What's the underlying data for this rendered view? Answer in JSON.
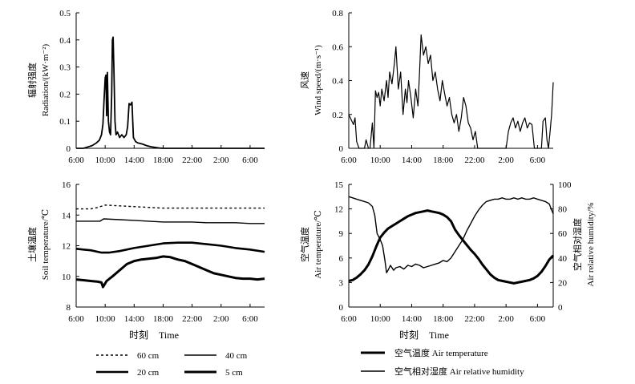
{
  "colors": {
    "ink": "#000000",
    "background": "#ffffff"
  },
  "chart_data": [
    {
      "id": "radiation",
      "type": "line",
      "ylabel_cn": "辐射强度",
      "ylabel_en": "Radiation/(kW·m⁻²)",
      "xlabel_cn": "",
      "xlabel_en": "",
      "ylim": [
        0,
        0.5
      ],
      "yticks": [
        0,
        0.1,
        0.2,
        0.3,
        0.4,
        0.5
      ],
      "ytick_labels": [
        "0",
        "0.1",
        "0.2",
        "0.3",
        "0.4",
        "0.5"
      ],
      "xlim": [
        6,
        32
      ],
      "xticks": [
        6,
        10,
        14,
        18,
        22,
        26,
        30
      ],
      "xtick_labels": [
        "6:00",
        "10:00",
        "14:00",
        "18:00",
        "22:00",
        "2:00",
        "6:00"
      ],
      "series": [
        {
          "name": "Radiation",
          "stroke": 1.8,
          "x": [
            6,
            7,
            7.6,
            8.2,
            8.8,
            9.2,
            9.5,
            9.7,
            9.85,
            10.0,
            10.1,
            10.2,
            10.3,
            10.45,
            10.6,
            10.75,
            10.9,
            11.0,
            11.1,
            11.2,
            11.35,
            11.5,
            11.7,
            12.0,
            12.3,
            12.6,
            12.9,
            13.1,
            13.3,
            13.5,
            13.7,
            13.9,
            14.0,
            14.2,
            14.5,
            14.8,
            15.2,
            15.7,
            16.3,
            17.0,
            17.5,
            18.0,
            18.5,
            20,
            24,
            28,
            32
          ],
          "y": [
            0,
            0,
            0.005,
            0.01,
            0.02,
            0.03,
            0.05,
            0.09,
            0.18,
            0.26,
            0.27,
            0.12,
            0.28,
            0.1,
            0.06,
            0.05,
            0.2,
            0.4,
            0.41,
            0.3,
            0.1,
            0.05,
            0.06,
            0.04,
            0.05,
            0.04,
            0.05,
            0.08,
            0.165,
            0.16,
            0.17,
            0.04,
            0.035,
            0.025,
            0.02,
            0.018,
            0.015,
            0.01,
            0.006,
            0.003,
            0.001,
            0,
            0,
            0,
            0,
            0,
            0
          ]
        }
      ]
    },
    {
      "id": "wind",
      "type": "line",
      "ylabel_cn": "风速",
      "ylabel_en": "Wind speed/(m·s⁻¹)",
      "xlabel_cn": "",
      "xlabel_en": "",
      "ylim": [
        0,
        0.8
      ],
      "yticks": [
        0,
        0.2,
        0.4,
        0.6,
        0.8
      ],
      "ytick_labels": [
        "0",
        "0.2",
        "0.4",
        "0.6",
        "0.8"
      ],
      "xlim": [
        6,
        32
      ],
      "xticks": [
        6,
        10,
        14,
        18,
        22,
        26,
        30
      ],
      "xtick_labels": [
        "6:00",
        "10:00",
        "14:00",
        "18:00",
        "22:00",
        "2:00",
        "6:00"
      ],
      "series": [
        {
          "name": "Wind speed",
          "stroke": 1.2,
          "x": [
            6,
            6.3,
            6.6,
            6.8,
            7.0,
            7.3,
            7.6,
            8.0,
            8.2,
            8.5,
            8.7,
            9.0,
            9.2,
            9.4,
            9.6,
            9.8,
            10.0,
            10.2,
            10.5,
            10.8,
            11.0,
            11.2,
            11.5,
            11.8,
            12.0,
            12.3,
            12.6,
            12.9,
            13.2,
            13.4,
            13.6,
            13.9,
            14.2,
            14.5,
            14.8,
            15.0,
            15.2,
            15.5,
            15.8,
            16.1,
            16.4,
            16.7,
            17.0,
            17.3,
            17.6,
            17.9,
            18.2,
            18.5,
            18.8,
            19.1,
            19.4,
            19.7,
            20.0,
            20.3,
            20.6,
            20.9,
            21.2,
            21.5,
            21.8,
            22.1,
            22.4,
            22.7,
            23.0,
            23.5,
            24,
            25,
            25.5,
            26.0,
            26.3,
            26.6,
            26.9,
            27.2,
            27.5,
            27.8,
            28.1,
            28.4,
            28.7,
            29.0,
            29.3,
            29.6,
            29.9,
            30.2,
            30.5,
            30.7,
            31.0,
            31.2,
            31.4,
            31.6,
            31.8,
            32
          ],
          "y": [
            0.2,
            0.17,
            0.14,
            0.18,
            0.04,
            0.0,
            0.0,
            0.0,
            0.05,
            0.0,
            0.0,
            0.15,
            0.0,
            0.34,
            0.3,
            0.33,
            0.25,
            0.35,
            0.28,
            0.4,
            0.3,
            0.45,
            0.38,
            0.5,
            0.6,
            0.35,
            0.45,
            0.2,
            0.35,
            0.27,
            0.4,
            0.3,
            0.18,
            0.35,
            0.25,
            0.45,
            0.67,
            0.55,
            0.6,
            0.5,
            0.55,
            0.4,
            0.45,
            0.35,
            0.28,
            0.4,
            0.32,
            0.25,
            0.3,
            0.2,
            0.15,
            0.2,
            0.1,
            0.18,
            0.3,
            0.25,
            0.15,
            0.12,
            0.05,
            0.1,
            0.0,
            0.0,
            0.0,
            0.0,
            0.0,
            0.0,
            0.0,
            0.0,
            0.1,
            0.15,
            0.18,
            0.12,
            0.16,
            0.1,
            0.15,
            0.18,
            0.12,
            0.15,
            0.14,
            0.0,
            0.0,
            0.0,
            0.0,
            0.16,
            0.18,
            0.05,
            0.0,
            0.1,
            0.2,
            0.39
          ]
        }
      ]
    },
    {
      "id": "soil",
      "type": "line",
      "ylabel_cn": "土壤温度",
      "ylabel_en": "Soil temperature/℃",
      "xlabel_cn": "时刻",
      "xlabel_en": "Time",
      "ylim": [
        8,
        16
      ],
      "yticks": [
        8,
        10,
        12,
        14,
        16
      ],
      "ytick_labels": [
        "8",
        "10",
        "12",
        "14",
        "16"
      ],
      "xlim": [
        6,
        32
      ],
      "xticks": [
        6,
        10,
        14,
        18,
        22,
        26,
        30
      ],
      "xtick_labels": [
        "6:00",
        "10:00",
        "14:00",
        "18:00",
        "22:00",
        "2:00",
        "6:00"
      ],
      "series": [
        {
          "name": "60 cm",
          "stroke": 1.4,
          "dash": "3,3",
          "x": [
            6,
            8,
            9,
            10,
            12,
            16,
            18,
            20,
            24,
            28,
            32
          ],
          "y": [
            14.4,
            14.4,
            14.5,
            14.65,
            14.6,
            14.5,
            14.45,
            14.45,
            14.45,
            14.45,
            14.45
          ]
        },
        {
          "name": "40 cm",
          "stroke": 1.4,
          "x": [
            6,
            8,
            9.3,
            9.8,
            12,
            14,
            16,
            18,
            20,
            22,
            24,
            26,
            28,
            30,
            32
          ],
          "y": [
            13.6,
            13.6,
            13.6,
            13.75,
            13.7,
            13.65,
            13.6,
            13.55,
            13.55,
            13.55,
            13.5,
            13.5,
            13.5,
            13.45,
            13.45
          ]
        },
        {
          "name": "20 cm",
          "stroke": 2.6,
          "x": [
            6,
            7,
            8,
            9.5,
            10.5,
            12,
            14,
            16,
            18,
            20,
            22,
            24,
            26,
            28,
            30,
            32
          ],
          "y": [
            11.8,
            11.75,
            11.7,
            11.55,
            11.55,
            11.65,
            11.85,
            12.0,
            12.15,
            12.2,
            12.2,
            12.1,
            12.0,
            11.85,
            11.75,
            11.6
          ]
        },
        {
          "name": "5 cm",
          "stroke": 3.0,
          "x": [
            6,
            7,
            8,
            9.0,
            9.5,
            9.7,
            10.2,
            11,
            12,
            13,
            14,
            15,
            16,
            17,
            18,
            19,
            20,
            21,
            22,
            23,
            24,
            25,
            26,
            27,
            28,
            29,
            30,
            31,
            32
          ],
          "y": [
            9.8,
            9.75,
            9.7,
            9.65,
            9.6,
            9.3,
            9.7,
            10.0,
            10.4,
            10.8,
            11.0,
            11.1,
            11.15,
            11.2,
            11.3,
            11.25,
            11.1,
            11.0,
            10.8,
            10.6,
            10.4,
            10.2,
            10.1,
            10.0,
            9.9,
            9.85,
            9.85,
            9.8,
            9.85
          ]
        }
      ]
    },
    {
      "id": "air",
      "type": "line",
      "ylabel_cn": "空气温度",
      "ylabel_en": "Air temperature/℃",
      "ylabel2_cn": "空气相对湿度",
      "ylabel2_en": "Air relative humidity/%",
      "xlabel_cn": "时刻",
      "xlabel_en": "Time",
      "ylim": [
        0,
        15
      ],
      "yticks": [
        0,
        3,
        6,
        9,
        12,
        15
      ],
      "ytick_labels": [
        "0",
        "3",
        "6",
        "9",
        "12",
        "15"
      ],
      "y2lim": [
        0,
        100
      ],
      "y2ticks": [
        0,
        20,
        40,
        60,
        80,
        100
      ],
      "y2tick_labels": [
        "0",
        "20",
        "40",
        "60",
        "80",
        "100"
      ],
      "xlim": [
        6,
        32
      ],
      "xticks": [
        6,
        10,
        14,
        18,
        22,
        26,
        30
      ],
      "xtick_labels": [
        "6:00",
        "10:00",
        "14:00",
        "18:00",
        "22:00",
        "2:00",
        "6:00"
      ],
      "series": [
        {
          "name": "空气温度 Air temperature",
          "axis": "left",
          "stroke": 3.0,
          "x": [
            6,
            6.5,
            7,
            7.5,
            8,
            8.5,
            9,
            9.5,
            10,
            10.5,
            11,
            11.5,
            12,
            12.5,
            13,
            13.5,
            14,
            14.5,
            15,
            15.5,
            16,
            16.5,
            17,
            17.5,
            18,
            18.5,
            19,
            19.5,
            20,
            20.5,
            21,
            21.5,
            22,
            22.5,
            23,
            23.5,
            24,
            24.5,
            25,
            25.5,
            26,
            26.5,
            27,
            27.5,
            28,
            28.5,
            29,
            29.5,
            30,
            30.5,
            31,
            31.5,
            32
          ],
          "y": [
            3.2,
            3.3,
            3.6,
            4.0,
            4.5,
            5.2,
            6.2,
            7.4,
            8.5,
            9.1,
            9.6,
            9.9,
            10.2,
            10.5,
            10.8,
            11.1,
            11.3,
            11.5,
            11.6,
            11.7,
            11.8,
            11.7,
            11.6,
            11.5,
            11.3,
            11.0,
            10.5,
            9.5,
            8.8,
            8.2,
            7.6,
            7.0,
            6.5,
            5.9,
            5.2,
            4.6,
            4.0,
            3.6,
            3.3,
            3.2,
            3.1,
            3.0,
            2.9,
            3.0,
            3.1,
            3.2,
            3.3,
            3.5,
            3.8,
            4.3,
            5.0,
            5.8,
            6.3
          ]
        },
        {
          "name": "空气相对湿度 Air relative humidity",
          "axis": "right",
          "stroke": 1.4,
          "x": [
            6,
            6.5,
            7,
            7.5,
            8,
            8.5,
            9,
            9.3,
            9.6,
            10,
            10.3,
            10.6,
            10.8,
            11,
            11.3,
            11.7,
            12,
            12.5,
            13,
            13.5,
            14,
            14.5,
            15,
            15.5,
            16,
            16.5,
            17,
            17.5,
            18,
            18.5,
            19,
            19.5,
            20,
            20.5,
            21,
            21.5,
            22,
            22.5,
            23,
            23.5,
            24,
            24.5,
            25,
            25.5,
            26,
            26.5,
            27,
            27.5,
            28,
            28.5,
            29,
            29.5,
            30,
            30.5,
            31,
            31.5,
            32
          ],
          "y": [
            90,
            89,
            88,
            87,
            86,
            85,
            82,
            75,
            60,
            55,
            50,
            38,
            28,
            30,
            34,
            30,
            32,
            33,
            31,
            34,
            33,
            35,
            34,
            32,
            33,
            34,
            35,
            36,
            38,
            37,
            40,
            45,
            50,
            55,
            62,
            68,
            74,
            79,
            83,
            86,
            87,
            88,
            88,
            89,
            88,
            88,
            89,
            88,
            89,
            88,
            88,
            89,
            88,
            87,
            86,
            84,
            76
          ]
        }
      ]
    }
  ],
  "legends": {
    "soil": [
      {
        "label": "60 cm",
        "stroke": 1.4,
        "dash": "3,3"
      },
      {
        "label": "40 cm",
        "stroke": 1.4
      },
      {
        "label": "20 cm",
        "stroke": 2.6
      },
      {
        "label": "5 cm",
        "stroke": 3.0
      }
    ],
    "air": [
      {
        "label": "空气温度 Air temperature",
        "stroke": 3.0
      },
      {
        "label": "空气相对湿度 Air relative humidity",
        "stroke": 1.4
      }
    ]
  }
}
